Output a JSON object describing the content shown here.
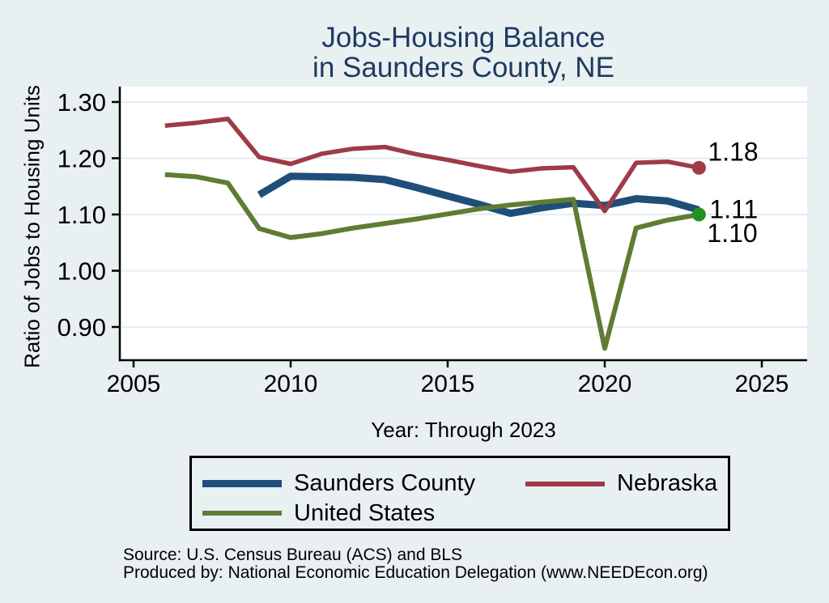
{
  "title": {
    "line1": "Jobs-Housing Balance",
    "line2": "in Saunders County, NE",
    "color": "#1e3a5f"
  },
  "chart_data": {
    "type": "line",
    "title": "Jobs-Housing Balance in Saunders County, NE",
    "xlabel": "Year: Through 2023",
    "ylabel": "Ratio of Jobs to Housing Units",
    "x_ticks": [
      2005,
      2010,
      2015,
      2020,
      2025
    ],
    "y_ticks": [
      "1.30",
      "1.20",
      "1.10",
      "1.00",
      "0.90"
    ],
    "y_tick_values": [
      1.3,
      1.2,
      1.1,
      1.0,
      0.9
    ],
    "xlim": [
      2004.55,
      2026.45
    ],
    "ylim": [
      0.843,
      1.327
    ],
    "grid": "horizontal",
    "plot_background": "#ffffff",
    "grid_color": "#e3edf2",
    "legend_position": "bottom",
    "series": [
      {
        "name": "Saunders County",
        "color": "#1f4e79",
        "line_width": 9,
        "years": [
          2009,
          2010,
          2011,
          2012,
          2013,
          2014,
          2015,
          2016,
          2017,
          2018,
          2019,
          2020,
          2021,
          2022,
          2023
        ],
        "values": [
          1.135,
          1.168,
          1.167,
          1.166,
          1.162,
          1.148,
          1.133,
          1.118,
          1.102,
          1.112,
          1.12,
          1.116,
          1.128,
          1.124,
          1.108
        ],
        "end_label": "1.11"
      },
      {
        "name": "Nebraska",
        "color": "#9e3b47",
        "line_width": 5.5,
        "years": [
          2006,
          2007,
          2008,
          2009,
          2010,
          2011,
          2012,
          2013,
          2014,
          2015,
          2016,
          2017,
          2018,
          2019,
          2020,
          2021,
          2022,
          2023
        ],
        "values": [
          1.258,
          1.263,
          1.27,
          1.202,
          1.19,
          1.208,
          1.217,
          1.22,
          1.207,
          1.197,
          1.186,
          1.176,
          1.182,
          1.184,
          1.106,
          1.192,
          1.194,
          1.183
        ],
        "end_label": "1.18",
        "end_dot_color": "#9e3b47"
      },
      {
        "name": "United States",
        "color": "#5e7d33",
        "line_width": 6,
        "years": [
          2006,
          2007,
          2008,
          2009,
          2010,
          2011,
          2012,
          2013,
          2014,
          2015,
          2016,
          2017,
          2018,
          2019,
          2020,
          2021,
          2022,
          2023
        ],
        "values": [
          1.171,
          1.167,
          1.156,
          1.075,
          1.059,
          1.066,
          1.076,
          1.084,
          1.092,
          1.101,
          1.11,
          1.117,
          1.122,
          1.127,
          0.862,
          1.076,
          1.09,
          1.1
        ],
        "end_label": "1.10",
        "end_dot_color": "#229022"
      }
    ]
  },
  "footer": {
    "line1": "Source: U.S. Census Bureau (ACS) and BLS",
    "line2": "Produced by: National Economic Education Delegation (www.NEEDEcon.org)"
  }
}
